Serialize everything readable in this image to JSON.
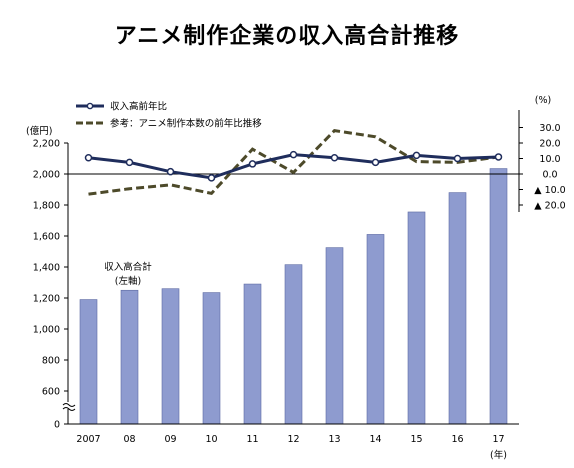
{
  "chart_data": {
    "type": "bar+line",
    "title": "アニメ制作企業の収入高合計推移",
    "categories": [
      "2007",
      "08",
      "09",
      "10",
      "11",
      "12",
      "13",
      "14",
      "15",
      "16",
      "17"
    ],
    "x_unit": "(年)",
    "bar_series": {
      "name": "収入高合計",
      "note": "(左軸)",
      "axis": "left",
      "values": [
        1190,
        1250,
        1260,
        1235,
        1290,
        1415,
        1525,
        1610,
        1755,
        1880,
        2035
      ]
    },
    "line_series": [
      {
        "name": "収入高前年比",
        "style": "solid-with-markers",
        "color": "#1f2d5c",
        "values": [
          10.5,
          7.5,
          1.5,
          -2.5,
          6.5,
          12.5,
          10.5,
          7.5,
          12.0,
          10.0,
          11.0
        ]
      },
      {
        "name": "参考：アニメ制作本数の前年比推移",
        "style": "dashed",
        "color": "#4d4a2a",
        "values": [
          -13.0,
          -9.5,
          -7.0,
          -12.5,
          16.0,
          1.0,
          28.0,
          24.0,
          8.0,
          7.5,
          11.0
        ]
      }
    ],
    "left_axis": {
      "label": "(億円)",
      "ticks": [
        "2,200",
        "2,000",
        "1,800",
        "1,600",
        "1,400",
        "1,200",
        "1,000",
        "800",
        "600",
        "0"
      ],
      "tick_values": [
        2200,
        2000,
        1800,
        1600,
        1400,
        1200,
        1000,
        800,
        600
      ],
      "break": true
    },
    "right_axis": {
      "label": "(%)",
      "ticks": [
        "30.0",
        "20.0",
        "10.0",
        "0.0",
        "▲ 10.0",
        "▲ 20.0"
      ],
      "tick_values": [
        30,
        20,
        10,
        0,
        -10,
        -20
      ]
    },
    "legend_position": "top-left",
    "grid": false
  }
}
